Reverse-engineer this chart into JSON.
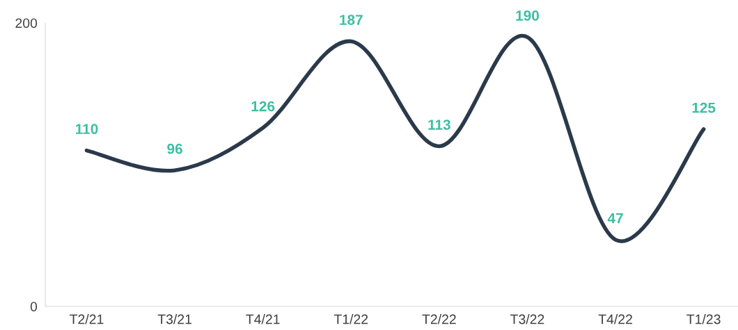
{
  "chart_data": {
    "type": "line",
    "categories": [
      "T2/21",
      "T3/21",
      "T4/21",
      "T1/22",
      "T2/22",
      "T3/22",
      "T4/22",
      "T1/23"
    ],
    "series": [
      {
        "color": "#2b3a4a",
        "values": [
          110,
          96,
          126,
          187,
          113,
          190,
          47,
          125
        ]
      }
    ],
    "ylim": [
      0,
      200
    ],
    "yticks": [
      0,
      200
    ],
    "data_labels": true,
    "grid": false,
    "legend": false,
    "marker": "none",
    "line_style": "solid"
  }
}
